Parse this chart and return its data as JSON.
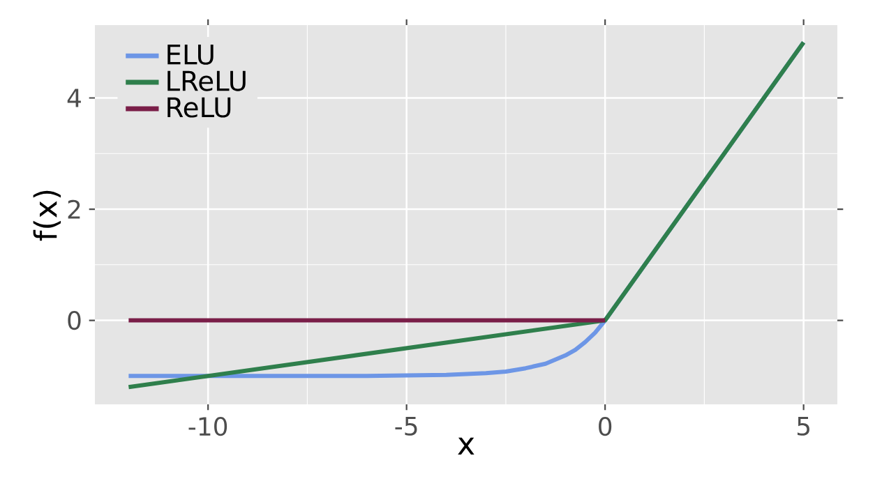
{
  "chart_data": {
    "type": "line",
    "xlabel": "x",
    "ylabel": "f(x)",
    "xlim": [
      -12.85,
      5.85
    ],
    "ylim": [
      -1.51,
      5.31
    ],
    "xticks": [
      -10,
      -5,
      0,
      5
    ],
    "yticks": [
      0,
      2,
      4
    ],
    "grid": true,
    "legend": "top left",
    "series": [
      {
        "name": "ELU",
        "color": "#6d96e6",
        "x": [
          -12,
          -10,
          -8,
          -6,
          -5,
          -4,
          -3,
          -2.5,
          -2,
          -1.5,
          -1,
          -0.75,
          -0.5,
          -0.25,
          0,
          5
        ],
        "values": [
          -1.0,
          -1.0,
          -1.0,
          -1.0,
          -0.99,
          -0.98,
          -0.95,
          -0.92,
          -0.86,
          -0.78,
          -0.63,
          -0.53,
          -0.39,
          -0.22,
          0,
          5
        ]
      },
      {
        "name": "LReLU",
        "color": "#2f7f4c",
        "x": [
          -12,
          0,
          5
        ],
        "values": [
          -1.2,
          0,
          5
        ]
      },
      {
        "name": "ReLU",
        "color": "#7a1e48",
        "x": [
          -12,
          0
        ],
        "values": [
          0,
          0
        ]
      }
    ]
  }
}
